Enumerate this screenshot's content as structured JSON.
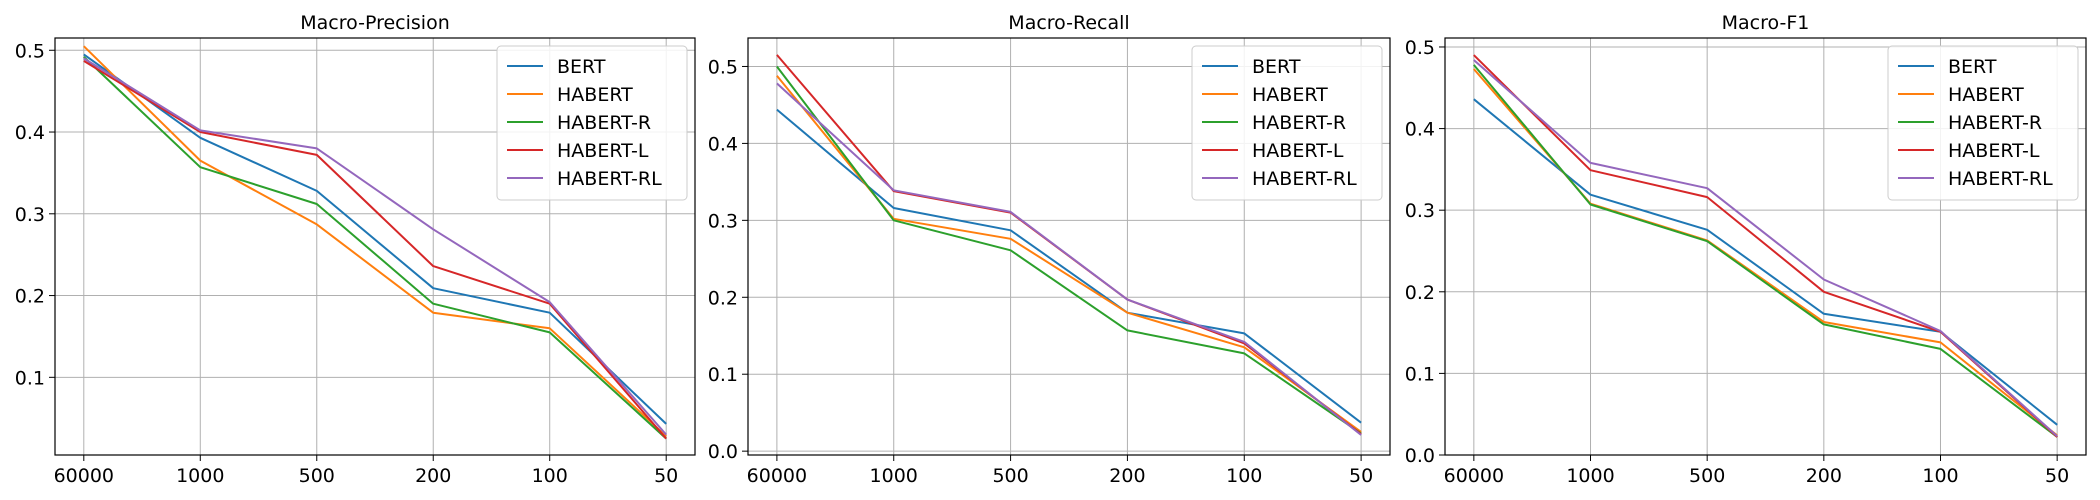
{
  "chart_data": [
    {
      "type": "line",
      "title": "Macro-Precision",
      "xlabel": "",
      "ylabel": "",
      "categories": [
        "60000",
        "1000",
        "500",
        "200",
        "100",
        "50"
      ],
      "ylim": [
        0.005,
        0.515
      ],
      "yticks": [
        0.1,
        0.2,
        0.3,
        0.4,
        0.5
      ],
      "ytick_labels": [
        "0.1",
        "0.2",
        "0.3",
        "0.4",
        "0.5"
      ],
      "grid": true,
      "legend_position": "top-right",
      "series": [
        {
          "name": "BERT",
          "color": "#1f77b4",
          "values": [
            0.495,
            0.393,
            0.328,
            0.209,
            0.179,
            0.043
          ]
        },
        {
          "name": "HABERT",
          "color": "#ff7f0e",
          "values": [
            0.505,
            0.365,
            0.287,
            0.179,
            0.16,
            0.028
          ]
        },
        {
          "name": "HABERT-R",
          "color": "#2ca02c",
          "values": [
            0.492,
            0.357,
            0.312,
            0.19,
            0.155,
            0.025
          ]
        },
        {
          "name": "HABERT-L",
          "color": "#d62728",
          "values": [
            0.487,
            0.4,
            0.372,
            0.236,
            0.19,
            0.025
          ]
        },
        {
          "name": "HABERT-RL",
          "color": "#9467bd",
          "values": [
            0.49,
            0.402,
            0.38,
            0.281,
            0.192,
            0.03
          ]
        }
      ]
    },
    {
      "type": "line",
      "title": "Macro-Recall",
      "xlabel": "",
      "ylabel": "",
      "categories": [
        "60000",
        "1000",
        "500",
        "200",
        "100",
        "50"
      ],
      "ylim": [
        -0.005,
        0.537
      ],
      "yticks": [
        0.0,
        0.1,
        0.2,
        0.3,
        0.4,
        0.5
      ],
      "ytick_labels": [
        "0.0",
        "0.1",
        "0.2",
        "0.3",
        "0.4",
        "0.5"
      ],
      "grid": true,
      "legend_position": "top-right",
      "series": [
        {
          "name": "BERT",
          "color": "#1f77b4",
          "values": [
            0.444,
            0.316,
            0.287,
            0.18,
            0.153,
            0.037
          ]
        },
        {
          "name": "HABERT",
          "color": "#ff7f0e",
          "values": [
            0.488,
            0.302,
            0.276,
            0.18,
            0.135,
            0.025
          ]
        },
        {
          "name": "HABERT-R",
          "color": "#2ca02c",
          "values": [
            0.5,
            0.3,
            0.261,
            0.157,
            0.127,
            0.023
          ]
        },
        {
          "name": "HABERT-L",
          "color": "#d62728",
          "values": [
            0.515,
            0.338,
            0.31,
            0.197,
            0.14,
            0.022
          ]
        },
        {
          "name": "HABERT-RL",
          "color": "#9467bd",
          "values": [
            0.478,
            0.339,
            0.311,
            0.197,
            0.142,
            0.021
          ]
        }
      ]
    },
    {
      "type": "line",
      "title": "Macro-F1",
      "xlabel": "",
      "ylabel": "",
      "categories": [
        "60000",
        "1000",
        "500",
        "200",
        "100",
        "50"
      ],
      "ylim": [
        0.0,
        0.511
      ],
      "yticks": [
        0.0,
        0.1,
        0.2,
        0.3,
        0.4,
        0.5
      ],
      "ytick_labels": [
        "0.0",
        "0.1",
        "0.2",
        "0.3",
        "0.4",
        "0.5"
      ],
      "grid": true,
      "legend_position": "top-right",
      "series": [
        {
          "name": "BERT",
          "color": "#1f77b4",
          "values": [
            0.436,
            0.319,
            0.276,
            0.173,
            0.151,
            0.037
          ]
        },
        {
          "name": "HABERT",
          "color": "#ff7f0e",
          "values": [
            0.473,
            0.308,
            0.263,
            0.163,
            0.138,
            0.024
          ]
        },
        {
          "name": "HABERT-R",
          "color": "#2ca02c",
          "values": [
            0.478,
            0.307,
            0.262,
            0.16,
            0.13,
            0.022
          ]
        },
        {
          "name": "HABERT-L",
          "color": "#d62728",
          "values": [
            0.49,
            0.349,
            0.316,
            0.2,
            0.151,
            0.022
          ]
        },
        {
          "name": "HABERT-RL",
          "color": "#9467bd",
          "values": [
            0.484,
            0.358,
            0.327,
            0.215,
            0.152,
            0.023
          ]
        }
      ]
    }
  ]
}
